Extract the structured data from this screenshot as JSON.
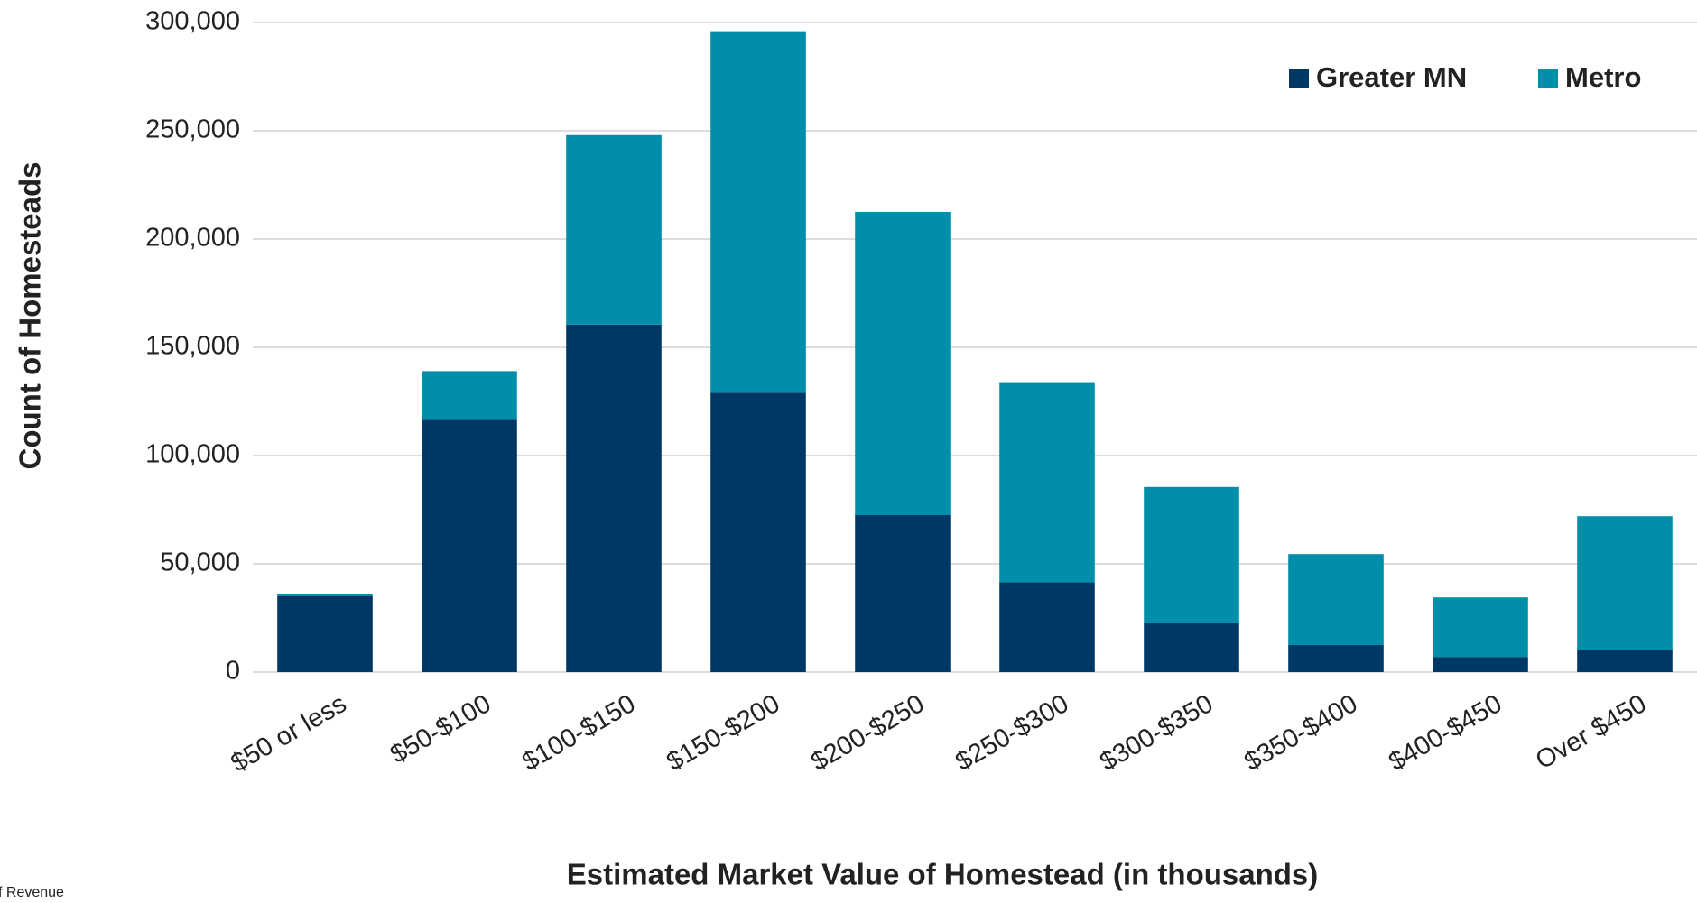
{
  "chart_data": {
    "type": "stacked_bar",
    "x_label": "Estimated Market Value of Homestead (in thousands)",
    "y_label": "Count of Homesteads",
    "source": "f Revenue",
    "categories": [
      "$50 or less",
      "$50-$100",
      "$100-$150",
      "$150-$200",
      "$200-$250",
      "$250-$300",
      "$300-$350",
      "$350-$400",
      "$400-$450",
      "Over $450"
    ],
    "series": [
      {
        "name": "Greater MN",
        "color": "#003865",
        "values": [
          35000,
          116500,
          160500,
          129000,
          72500,
          41500,
          22500,
          12500,
          7000,
          10000
        ]
      },
      {
        "name": "Metro",
        "color": "#008eaa",
        "values": [
          1000,
          22500,
          87500,
          167000,
          140000,
          92000,
          63000,
          42000,
          27500,
          62000
        ]
      }
    ],
    "ylim": [
      0,
      300000
    ],
    "yticks": [
      0,
      {
        "value": 50000,
        "label": "50,000"
      },
      {
        "value": 100000,
        "label": "100,000"
      },
      {
        "value": 150000,
        "label": "150,000"
      },
      {
        "value": 200000,
        "label": "200,000"
      },
      {
        "value": 250000,
        "label": "250,000"
      },
      {
        "value": 300000,
        "label": "300,000"
      }
    ],
    "grid": true,
    "legend": "top-right"
  }
}
